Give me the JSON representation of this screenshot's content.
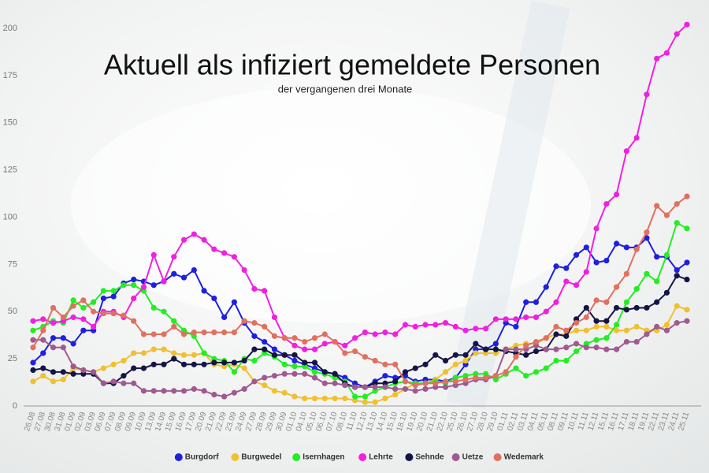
{
  "chart_data": {
    "type": "line",
    "title": "Aktuell als infiziert gemeldete Personen",
    "subtitle": "der vergangenen drei Monate",
    "categories": [
      "26.08",
      "27.08",
      "30.08",
      "31.08",
      "01.09",
      "02.09",
      "03.09",
      "06.09",
      "07.09",
      "08.09",
      "09.09",
      "10.09",
      "13.09",
      "14.09",
      "15.09",
      "16.09",
      "17.09",
      "20.09",
      "21.09",
      "22.09",
      "23.09",
      "24.09",
      "27.09",
      "28.09",
      "29.09",
      "30.09",
      "01.10",
      "04.10",
      "05.10",
      "06.10",
      "07.10",
      "08.10",
      "11.10",
      "12.10",
      "13.10",
      "14.10",
      "15.10",
      "18.10",
      "19.10",
      "20.10",
      "21.10",
      "22.10",
      "25.10",
      "26.10",
      "27.10",
      "28.10",
      "29.10",
      "01.11",
      "02.11",
      "03.11",
      "04.11",
      "05.11",
      "08.11",
      "09.11",
      "10.11",
      "11.11",
      "12.11",
      "15.11",
      "16.11",
      "17.11",
      "18.11",
      "19.11",
      "22.11",
      "23.11",
      "24.11",
      "25.11"
    ],
    "series": [
      {
        "name": "Burgdorf",
        "color": "#1f1fe0",
        "values": [
          23,
          28,
          36,
          36,
          33,
          40,
          40,
          57,
          58,
          65,
          67,
          66,
          64,
          66,
          70,
          68,
          72,
          61,
          57,
          47,
          55,
          44,
          37,
          34,
          30,
          27,
          24,
          22,
          20,
          18,
          17,
          15,
          12,
          10,
          13,
          16,
          15,
          16,
          13,
          14,
          14,
          13,
          15,
          22,
          30,
          30,
          33,
          44,
          42,
          55,
          55,
          63,
          74,
          73,
          80,
          84,
          76,
          77,
          86,
          84,
          84,
          89,
          79,
          79,
          72,
          76
        ]
      },
      {
        "name": "Burgwedel",
        "color": "#f0c030",
        "values": [
          13,
          16,
          13,
          14,
          20,
          19,
          18,
          20,
          22,
          24,
          28,
          28,
          30,
          30,
          28,
          27,
          27,
          28,
          22,
          21,
          22,
          20,
          13,
          11,
          8,
          7,
          5,
          4,
          4,
          4,
          4,
          4,
          3,
          2,
          2,
          4,
          6,
          9,
          12,
          12,
          14,
          18,
          22,
          24,
          28,
          28,
          28,
          30,
          32,
          33,
          33,
          36,
          38,
          38,
          40,
          40,
          42,
          42,
          40,
          40,
          42,
          40,
          40,
          43,
          53,
          51
        ]
      },
      {
        "name": "Isernhagen",
        "color": "#22ee22",
        "values": [
          40,
          42,
          45,
          44,
          56,
          52,
          55,
          61,
          61,
          64,
          64,
          61,
          52,
          50,
          45,
          40,
          37,
          28,
          25,
          24,
          18,
          25,
          24,
          28,
          26,
          22,
          21,
          21,
          18,
          17,
          15,
          13,
          5,
          5,
          8,
          10,
          12,
          13,
          12,
          12,
          13,
          12,
          15,
          16,
          17,
          17,
          14,
          17,
          20,
          16,
          18,
          20,
          24,
          24,
          29,
          33,
          35,
          36,
          43,
          55,
          62,
          70,
          66,
          80,
          97,
          94
        ]
      },
      {
        "name": "Lehrte",
        "color": "#f020e0",
        "values": [
          45,
          46,
          44,
          45,
          47,
          46,
          42,
          50,
          50,
          47,
          57,
          63,
          80,
          66,
          79,
          88,
          91,
          88,
          83,
          81,
          79,
          72,
          62,
          61,
          47,
          36,
          32,
          30,
          30,
          33,
          34,
          32,
          36,
          39,
          38,
          39,
          38,
          43,
          42,
          43,
          43,
          44,
          42,
          40,
          41,
          41,
          46,
          46,
          46,
          47,
          47,
          50,
          55,
          66,
          64,
          71,
          94,
          107,
          112,
          135,
          142,
          165,
          184,
          187,
          197,
          202
        ]
      },
      {
        "name": "Sehnde",
        "color": "#151545",
        "values": [
          19,
          20,
          18,
          18,
          17,
          17,
          17,
          12,
          12,
          16,
          20,
          20,
          22,
          22,
          25,
          22,
          22,
          22,
          23,
          23,
          23,
          24,
          30,
          30,
          27,
          27,
          27,
          23,
          23,
          18,
          17,
          12,
          10,
          10,
          12,
          12,
          13,
          18,
          20,
          22,
          27,
          24,
          27,
          27,
          33,
          30,
          30,
          29,
          28,
          27,
          29,
          30,
          38,
          37,
          46,
          52,
          45,
          45,
          52,
          51,
          52,
          52,
          55,
          60,
          69,
          67
        ]
      },
      {
        "name": "Uetze",
        "color": "#a05a90",
        "values": [
          35,
          35,
          31,
          31,
          21,
          19,
          18,
          12,
          13,
          12,
          12,
          8,
          8,
          8,
          8,
          8,
          9,
          8,
          6,
          5,
          7,
          9,
          13,
          15,
          16,
          17,
          17,
          17,
          15,
          12,
          12,
          11,
          10,
          10,
          10,
          10,
          9,
          9,
          8,
          9,
          10,
          10,
          11,
          12,
          14,
          14,
          16,
          30,
          30,
          30,
          32,
          30,
          30,
          31,
          33,
          31,
          31,
          30,
          30,
          34,
          34,
          38,
          42,
          40,
          44,
          45
        ]
      },
      {
        "name": "Wedemark",
        "color": "#e07060",
        "values": [
          31,
          40,
          52,
          47,
          53,
          56,
          50,
          49,
          49,
          48,
          45,
          38,
          38,
          38,
          42,
          38,
          39,
          39,
          39,
          39,
          39,
          45,
          44,
          42,
          37,
          36,
          36,
          34,
          36,
          38,
          34,
          28,
          29,
          26,
          24,
          22,
          22,
          13,
          11,
          12,
          12,
          13,
          13,
          14,
          15,
          15,
          16,
          18,
          26,
          32,
          34,
          36,
          42,
          40,
          44,
          47,
          56,
          55,
          63,
          70,
          83,
          92,
          106,
          101,
          107,
          111
        ]
      }
    ],
    "ylim": [
      0,
      200
    ],
    "yticks": [
      0,
      25,
      50,
      75,
      100,
      125,
      150,
      175,
      200
    ],
    "grid": false,
    "legend": "bottom"
  }
}
